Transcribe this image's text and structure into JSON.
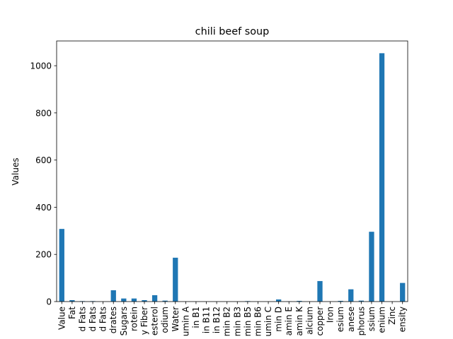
{
  "chart_data": {
    "type": "bar",
    "title": "chili beef soup",
    "xlabel": "",
    "ylabel": "Values",
    "ylim": [
      0,
      1105
    ],
    "yticks": [
      0,
      200,
      400,
      600,
      800,
      1000
    ],
    "grid": false,
    "bar_color": "#1f77b4",
    "categories": [
      "Value",
      "Fat",
      "d Fats",
      "d Fats",
      "d Fats",
      "drates",
      "Sugars",
      "rotein",
      "y Fiber",
      "esterol",
      "odium",
      "Water",
      "umin A",
      "in B1",
      "in B11",
      "in B12",
      "min B2",
      "min B3",
      "min B5",
      "min B6",
      "umin C",
      "min D",
      "amin E",
      "amin K",
      "alcium",
      "copper",
      "Iron",
      "esium",
      "anese",
      "phorus",
      "ssium",
      "enium",
      "Zinc",
      "ensity"
    ],
    "values": [
      308,
      6,
      2,
      2,
      0,
      48,
      13,
      13,
      6,
      27,
      4,
      186,
      0,
      0,
      0,
      0,
      0,
      0,
      2,
      0,
      0,
      9,
      1,
      3,
      0,
      87,
      0,
      3,
      52,
      4,
      296,
      1053,
      0,
      79
    ]
  }
}
